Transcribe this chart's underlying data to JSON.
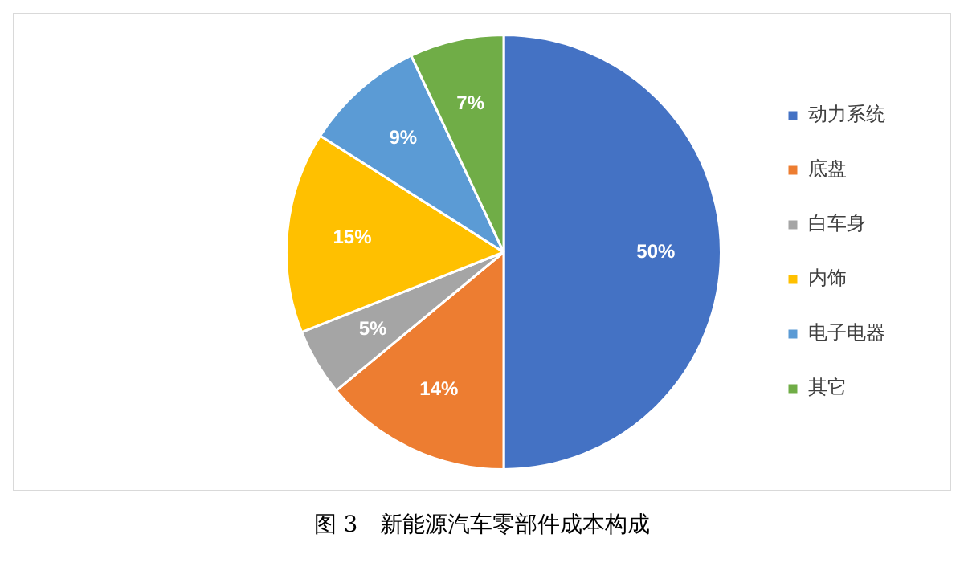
{
  "chart_data": {
    "type": "pie",
    "title": "图 3　新能源汽车零部件成本构成",
    "categories": [
      "动力系统",
      "底盘",
      "白车身",
      "内饰",
      "电子电器",
      "其它"
    ],
    "values": [
      50,
      14,
      5,
      15,
      9,
      7
    ],
    "value_labels": [
      "50%",
      "14%",
      "5%",
      "15%",
      "9%",
      "7%"
    ],
    "colors": [
      "#4472c4",
      "#ed7d31",
      "#a5a5a5",
      "#ffc000",
      "#5b9bd5",
      "#70ad47"
    ],
    "legend": "right"
  }
}
